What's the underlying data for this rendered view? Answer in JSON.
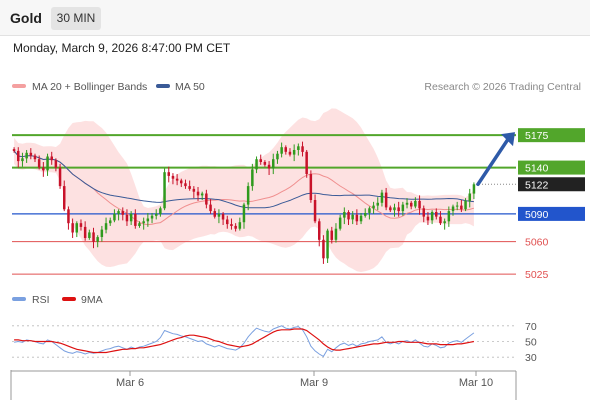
{
  "header": {
    "symbol": "Gold",
    "timeframe": "30 MIN"
  },
  "timestamp": "Monday, March 9, 2026 8:47:00 PM CET",
  "legend": {
    "ma20_label": "MA 20 + Bollinger Bands",
    "ma50_label": "MA 50",
    "credit": "Research © 2026 Trading Central"
  },
  "colors": {
    "bullish": "#2f9a1d",
    "bearish": "#c8122a",
    "ma20": "#f08f8f",
    "ma50": "#3a5a97",
    "bollinger_fill": "#fddede",
    "resistance": "#52a62b",
    "support_blue": "#2255cc",
    "support_red": "#e05050",
    "last_price": "#222222",
    "rsi": "#7aa0e0",
    "rsi_ma": "#dd1111"
  },
  "chart_data": [
    {
      "type": "candlestick",
      "series": [
        {
          "name": "MA 20 + Bollinger Bands"
        },
        {
          "name": "MA 50"
        }
      ],
      "x_ticks": [
        "Mar 6",
        "Mar 9",
        "Mar 10"
      ],
      "ylim": [
        5010,
        5200
      ],
      "levels": [
        {
          "value": 5175,
          "label": "5175",
          "kind": "resistance"
        },
        {
          "value": 5140,
          "label": "5140",
          "kind": "resistance"
        },
        {
          "value": 5122,
          "label": "5122",
          "kind": "last"
        },
        {
          "value": 5090,
          "label": "5090",
          "kind": "pivot"
        },
        {
          "value": 5060,
          "label": "5060",
          "kind": "support"
        },
        {
          "value": 5025,
          "label": "5025",
          "kind": "support"
        }
      ],
      "projection": {
        "from": 5122,
        "to": 5175
      },
      "closes": [
        5158,
        5147,
        5150,
        5156,
        5153,
        5149,
        5140,
        5137,
        5152,
        5148,
        5140,
        5120,
        5095,
        5080,
        5070,
        5080,
        5076,
        5064,
        5070,
        5060,
        5065,
        5073,
        5080,
        5083,
        5090,
        5093,
        5089,
        5082,
        5090,
        5077,
        5080,
        5082,
        5085,
        5088,
        5090,
        5096,
        5135,
        5131,
        5128,
        5126,
        5123,
        5120,
        5117,
        5114,
        5110,
        5112,
        5100,
        5093,
        5087,
        5090,
        5084,
        5079,
        5077,
        5074,
        5081,
        5100,
        5120,
        5138,
        5149,
        5146,
        5143,
        5139,
        5149,
        5155,
        5162,
        5157,
        5154,
        5159,
        5163,
        5157,
        5133,
        5105,
        5082,
        5062,
        5042,
        5072,
        5062,
        5074,
        5086,
        5092,
        5084,
        5089,
        5082,
        5088,
        5091,
        5096,
        5099,
        5102,
        5113,
        5097,
        5094,
        5097,
        5093,
        5100,
        5102,
        5098,
        5104,
        5096,
        5087,
        5083,
        5092,
        5087,
        5080,
        5082,
        5093,
        5098,
        5099,
        5095,
        5104,
        5112,
        5122
      ]
    },
    {
      "type": "line",
      "series": [
        {
          "name": "RSI",
          "values": [
            49,
            50,
            49,
            52,
            51,
            50,
            48,
            47,
            52,
            50,
            46,
            42,
            38,
            36,
            35,
            37,
            36,
            34,
            36,
            35,
            36,
            38,
            40,
            41,
            43,
            44,
            42,
            40,
            43,
            41,
            43,
            44,
            46,
            48,
            50,
            55,
            64,
            62,
            60,
            59,
            57,
            56,
            54,
            52,
            50,
            51,
            47,
            45,
            43,
            45,
            43,
            41,
            40,
            39,
            42,
            48,
            56,
            62,
            67,
            65,
            63,
            62,
            66,
            68,
            70,
            67,
            66,
            68,
            69,
            65,
            56,
            44,
            38,
            34,
            31,
            40,
            37,
            42,
            46,
            48,
            45,
            47,
            44,
            47,
            48,
            50,
            51,
            52,
            56,
            49,
            47,
            49,
            47,
            50,
            51,
            49,
            52,
            48,
            44,
            43,
            47,
            45,
            42,
            43,
            48,
            50,
            51,
            49,
            53,
            57,
            61
          ]
        },
        {
          "name": "9MA",
          "values": [
            52,
            52,
            51,
            51,
            51,
            50,
            50,
            50,
            50,
            50,
            49,
            48,
            46,
            44,
            42,
            40,
            39,
            38,
            37,
            36,
            36,
            36,
            36,
            37,
            38,
            39,
            40,
            40,
            41,
            41,
            42,
            42,
            43,
            44,
            45,
            46,
            48,
            50,
            52,
            54,
            55,
            57,
            58,
            58,
            57,
            56,
            55,
            53,
            51,
            50,
            48,
            46,
            45,
            44,
            43,
            44,
            45,
            47,
            50,
            53,
            56,
            59,
            62,
            64,
            65,
            65,
            65,
            66,
            66,
            66,
            64,
            60,
            56,
            52,
            47,
            43,
            40,
            39,
            39,
            40,
            41,
            42,
            43,
            44,
            45,
            46,
            47,
            47,
            48,
            49,
            49,
            49,
            50,
            50,
            49,
            49,
            49,
            49,
            48,
            47,
            47,
            47,
            46,
            46,
            46,
            46,
            47,
            47,
            48,
            49,
            50
          ]
        }
      ],
      "x_ticks": [
        "Mar 6",
        "Mar 9",
        "Mar 10"
      ],
      "y_ticks": [
        "70",
        "50",
        "30"
      ],
      "ylim": [
        20,
        80
      ]
    }
  ]
}
